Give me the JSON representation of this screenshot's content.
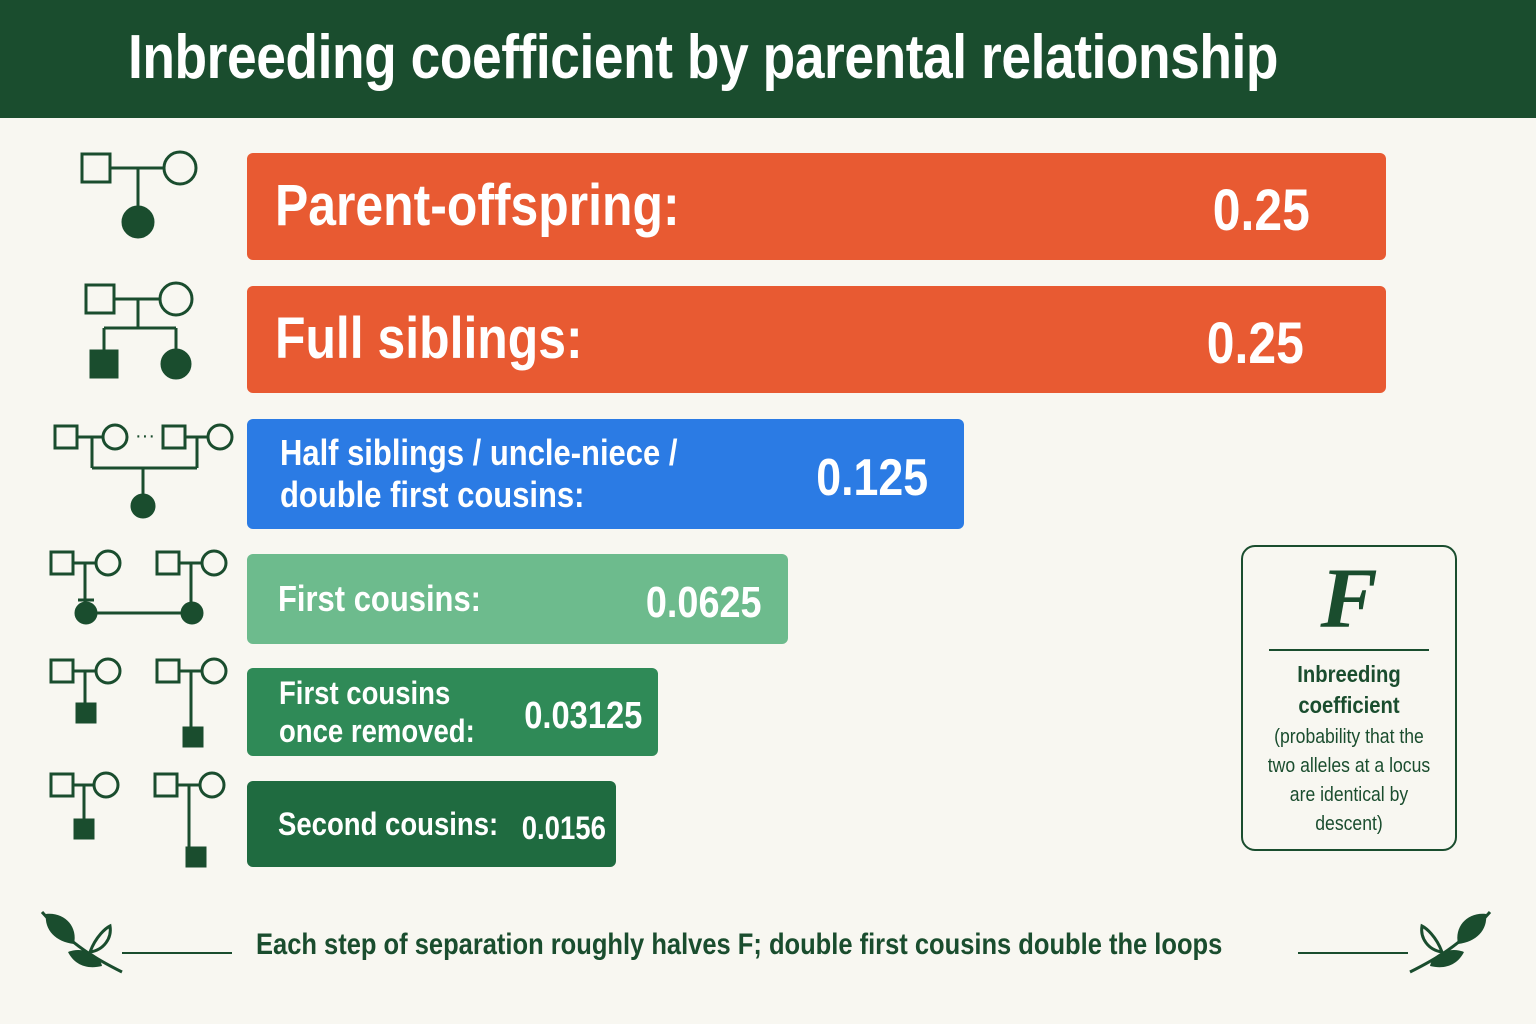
{
  "header": {
    "title": "Inbreeding coefficient by parental relationship"
  },
  "chart_data": {
    "type": "bar",
    "orientation": "horizontal",
    "title": "Inbreeding coefficient by parental relationship",
    "categories": [
      "Parent-offspring:",
      "Full siblings:",
      "Half siblings / uncle-niece /\ndouble first cousins:",
      "First cousins:",
      "First cousins\nonce removed:",
      "Second cousins:"
    ],
    "values": [
      0.25,
      0.25,
      0.125,
      0.0625,
      0.03125,
      0.0156
    ],
    "value_labels": [
      "0.25",
      "0.25",
      "0.125",
      "0.0625",
      "0.03125",
      "0.0156"
    ],
    "colors": [
      "#e85a32",
      "#e85a32",
      "#2b7be4",
      "#6dbb8d",
      "#2f8a57",
      "#1f6b40"
    ],
    "icons": [
      "pedigree-parent-offspring-icon",
      "pedigree-full-siblings-icon",
      "pedigree-half-siblings-icon",
      "pedigree-first-cousins-icon",
      "pedigree-first-cousins-once-removed-icon",
      "pedigree-second-cousins-icon"
    ]
  },
  "legend": {
    "symbol": "F",
    "title": "Inbreeding\ncoefficient",
    "description": "(probability that the two alleles at a locus are identical by descent)"
  },
  "footer": {
    "text": "Each step of separation roughly halves F; double first cousins double the loops",
    "icons": [
      "leaf-sprig-icon",
      "leaf-sprig-icon"
    ]
  },
  "colors": {
    "header": "#1a4d2e",
    "background": "#f8f7f1",
    "ink": "#1a4d2e"
  }
}
